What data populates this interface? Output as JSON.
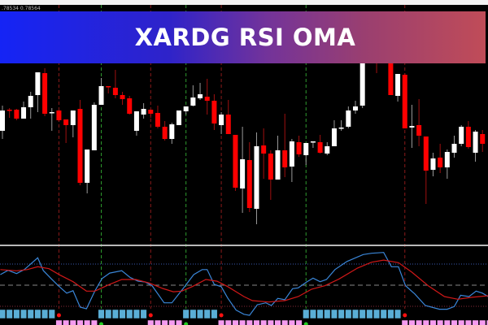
{
  "banner": {
    "title": "XARDG RSI OMA",
    "gradient_start": "#1524f5",
    "gradient_end": "#c04c58"
  },
  "quote_text": ".78534 0.78564",
  "colors": {
    "bull": "#ffffff",
    "bear": "#ff0000",
    "rsi": "#3a86d8",
    "signal": "#d01818",
    "up_block": "#5aaed6",
    "down_block": "#f59cf0",
    "sell_line": "#8a1a1a",
    "buy_line": "#2e9a2e"
  },
  "chart_data": [
    {
      "type": "candlestick",
      "title": "",
      "columns": [
        "open",
        "high",
        "low",
        "close"
      ],
      "candles": [
        [
          139,
          170,
          129,
          164
        ],
        [
          165,
          167,
          155,
          164
        ],
        [
          165,
          166,
          152,
          154
        ],
        [
          154,
          175,
          154,
          168
        ],
        [
          168,
          187,
          154,
          182
        ],
        [
          183,
          211,
          162,
          211
        ],
        [
          210,
          216,
          157,
          160
        ],
        [
          161,
          167,
          139,
          162
        ],
        [
          164,
          164,
          150,
          152
        ],
        [
          153,
          153,
          124,
          146
        ],
        [
          146,
          164,
          131,
          164
        ],
        [
          166,
          177,
          72,
          75
        ],
        [
          75,
          116,
          62,
          116
        ],
        [
          115,
          174,
          115,
          171
        ],
        [
          171,
          204,
          171,
          194
        ],
        [
          194,
          194,
          185,
          193
        ],
        [
          192,
          214,
          179,
          183
        ],
        [
          183,
          187,
          171,
          178
        ],
        [
          179,
          182,
          159,
          160
        ],
        [
          139,
          163,
          133,
          163
        ],
        [
          159,
          173,
          154,
          166
        ],
        [
          165,
          165,
          155,
          160
        ],
        [
          161,
          170,
          142,
          144
        ],
        [
          144,
          151,
          127,
          129
        ],
        [
          129,
          149,
          123,
          147
        ],
        [
          146,
          164,
          146,
          164
        ],
        [
          163,
          169,
          159,
          169
        ],
        [
          170,
          195,
          169,
          180
        ],
        [
          179,
          198,
          177,
          184
        ],
        [
          181,
          203,
          159,
          176
        ],
        [
          176,
          184,
          140,
          148
        ],
        [
          146,
          162,
          135,
          159
        ],
        [
          159,
          177,
          135,
          135
        ],
        [
          134,
          134,
          65,
          69
        ],
        [
          68,
          144,
          38,
          104
        ],
        [
          103,
          125,
          39,
          44
        ],
        [
          43,
          137,
          24,
          120
        ],
        [
          121,
          142,
          80,
          111
        ],
        [
          111,
          115,
          54,
          79
        ],
        [
          79,
          133,
          79,
          115
        ],
        [
          115,
          160,
          82,
          94
        ],
        [
          95,
          129,
          76,
          126
        ],
        [
          125,
          133,
          107,
          110
        ],
        [
          109,
          124,
          97,
          124
        ],
        [
          125,
          126,
          118,
          126
        ],
        [
          125,
          134,
          111,
          112
        ],
        [
          111,
          125,
          109,
          120
        ],
        [
          120,
          152,
          120,
          142
        ],
        [
          142,
          152,
          139,
          143
        ],
        [
          144,
          169,
          142,
          164
        ],
        [
          164,
          176,
          160,
          169
        ],
        [
          170,
          230,
          167,
          225
        ],
        [
          225,
          240,
          222,
          235
        ],
        [
          240,
          245,
          210,
          225
        ],
        [
          226,
          240,
          224,
          238
        ],
        [
          235,
          240,
          183,
          183
        ],
        [
          182,
          209,
          175,
          209
        ],
        [
          208,
          210,
          142,
          142
        ],
        [
          143,
          171,
          118,
          145
        ],
        [
          146,
          178,
          120,
          133
        ],
        [
          132,
          132,
          49,
          90
        ],
        [
          91,
          112,
          83,
          105
        ],
        [
          106,
          123,
          87,
          94
        ],
        [
          94,
          116,
          80,
          113
        ],
        [
          112,
          133,
          106,
          123
        ],
        [
          123,
          146,
          120,
          144
        ],
        [
          144,
          151,
          117,
          119
        ],
        [
          112,
          140,
          101,
          138
        ],
        [
          135,
          140,
          113,
          123
        ]
      ]
    },
    {
      "type": "line",
      "title": "",
      "levels": [
        70,
        50,
        30
      ],
      "series": [
        {
          "points": [
            [
              -0.3,
              60.0
            ],
            [
              0.8,
              64.1
            ],
            [
              2.0,
              61.0
            ],
            [
              3.1,
              64.8
            ],
            [
              5.0,
              75.9
            ],
            [
              5.8,
              63.8
            ],
            [
              6.9,
              56.2
            ],
            [
              7.9,
              49.5
            ],
            [
              9.1,
              42.5
            ],
            [
              10.0,
              44.8
            ],
            [
              11.0,
              29.2
            ],
            [
              11.9,
              27.7
            ],
            [
              13.1,
              44.6
            ],
            [
              14.1,
              56.2
            ],
            [
              15.2,
              61.5
            ],
            [
              16.9,
              63.8
            ],
            [
              18.1,
              57.2
            ],
            [
              19.2,
              53.8
            ],
            [
              20.2,
              53.1
            ],
            [
              21.2,
              49.5
            ],
            [
              22.9,
              33.3
            ],
            [
              24.0,
              33.3
            ],
            [
              25.8,
              48.5
            ],
            [
              27.1,
              60.0
            ],
            [
              28.3,
              64.8
            ],
            [
              29.0,
              64.8
            ],
            [
              30.0,
              50.8
            ],
            [
              31.0,
              48.5
            ],
            [
              31.9,
              37.9
            ],
            [
              33.1,
              26.4
            ],
            [
              34.2,
              22.5
            ],
            [
              35.0,
              21.5
            ],
            [
              36.1,
              31.5
            ],
            [
              37.3,
              33.3
            ],
            [
              38.1,
              30.8
            ],
            [
              39.0,
              37.5
            ],
            [
              40.0,
              36.2
            ],
            [
              41.1,
              46.7
            ],
            [
              41.9,
              47.5
            ],
            [
              43.1,
              53.1
            ],
            [
              44.0,
              56.7
            ],
            [
              45.0,
              53.3
            ],
            [
              45.9,
              55.4
            ],
            [
              47.1,
              64.8
            ],
            [
              48.8,
              72.5
            ],
            [
              51.1,
              79.0
            ],
            [
              52.3,
              80.2
            ],
            [
              54.0,
              81.0
            ],
            [
              55.1,
              67.5
            ],
            [
              56.1,
              67.5
            ],
            [
              57.1,
              49.5
            ],
            [
              58.4,
              41.8
            ],
            [
              59.9,
              30.8
            ],
            [
              61.9,
              27.2
            ],
            [
              63.0,
              27.2
            ],
            [
              64.0,
              29.8
            ],
            [
              64.9,
              40.5
            ],
            [
              66.1,
              39.2
            ],
            [
              67.1,
              44.4
            ],
            [
              68.0,
              42.5
            ],
            [
              68.8,
              39.2
            ]
          ]
        },
        {
          "points": [
            [
              -0.3,
              64.8
            ],
            [
              2.0,
              63.6
            ],
            [
              3.5,
              64.8
            ],
            [
              5.0,
              67.5
            ],
            [
              6.6,
              65.6
            ],
            [
              8.1,
              59.8
            ],
            [
              10.0,
              53.3
            ],
            [
              11.9,
              44.4
            ],
            [
              13.1,
              44.4
            ],
            [
              15.0,
              50.2
            ],
            [
              16.9,
              55.4
            ],
            [
              18.9,
              55.4
            ],
            [
              20.8,
              52.1
            ],
            [
              22.7,
              46.9
            ],
            [
              24.2,
              43.8
            ],
            [
              25.4,
              44.4
            ],
            [
              26.9,
              48.7
            ],
            [
              28.8,
              55.4
            ],
            [
              30.4,
              53.8
            ],
            [
              31.9,
              48.7
            ],
            [
              34.2,
              39.2
            ],
            [
              35.4,
              35.4
            ],
            [
              37.7,
              34.1
            ],
            [
              40.0,
              35.4
            ],
            [
              41.9,
              39.2
            ],
            [
              43.8,
              46.2
            ],
            [
              45.7,
              49.5
            ],
            [
              47.7,
              55.9
            ],
            [
              50.3,
              66.2
            ],
            [
              52.3,
              71.8
            ],
            [
              54.0,
              73.8
            ],
            [
              56.1,
              71.3
            ],
            [
              58.0,
              62.3
            ],
            [
              60.3,
              49.5
            ],
            [
              62.6,
              39.2
            ],
            [
              64.5,
              36.7
            ],
            [
              66.5,
              38.5
            ],
            [
              68.8,
              40.0
            ]
          ]
        }
      ],
      "trend_runs": [
        {
          "trend": "up",
          "from": 0,
          "to": 7
        },
        {
          "trend": "down",
          "from": 8,
          "to": 13
        },
        {
          "trend": "up",
          "from": 14,
          "to": 20
        },
        {
          "trend": "down",
          "from": 21,
          "to": 25
        },
        {
          "trend": "up",
          "from": 26,
          "to": 30
        },
        {
          "trend": "down",
          "from": 31,
          "to": 42
        },
        {
          "trend": "up",
          "from": 43,
          "to": 56
        },
        {
          "trend": "down",
          "from": 57,
          "to": 69
        }
      ],
      "sell_signals": [
        8,
        21,
        31,
        57
      ],
      "buy_signals": [
        14,
        26,
        43
      ]
    }
  ]
}
